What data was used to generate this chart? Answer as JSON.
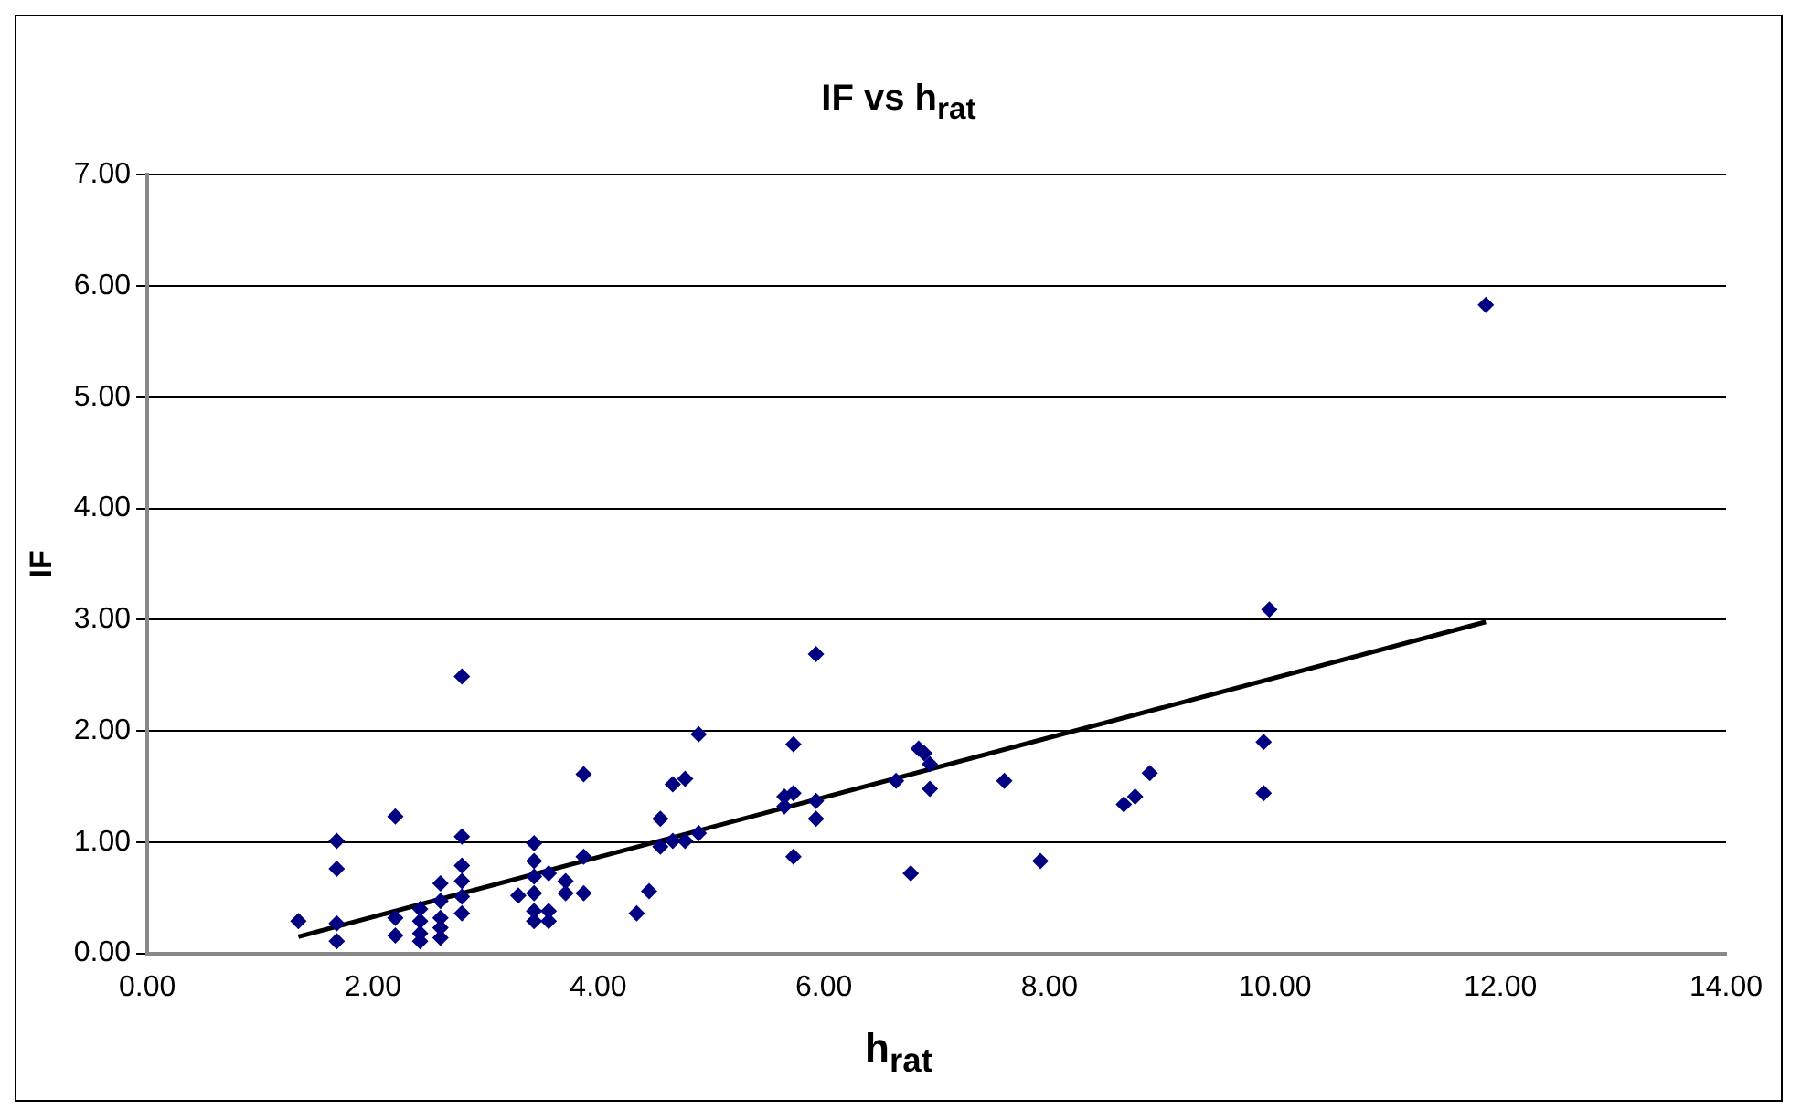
{
  "chart_data": {
    "type": "scatter",
    "title": "IF vs h$_{rat}$",
    "xlabel": "h$_{rat}$",
    "ylabel": "IF",
    "xlim": [
      0,
      14
    ],
    "xticks": [
      {
        "value": 0,
        "label": "0.00"
      },
      {
        "value": 2,
        "label": "2.00"
      },
      {
        "value": 4,
        "label": "4.00"
      },
      {
        "value": 6,
        "label": "6.00"
      },
      {
        "value": 8,
        "label": "8.00"
      },
      {
        "value": 10,
        "label": "10.00"
      },
      {
        "value": 12,
        "label": "12.00"
      },
      {
        "value": 14,
        "label": "14.00"
      }
    ],
    "ylim": [
      0,
      7
    ],
    "yticks": [
      {
        "value": 0,
        "label": "0.00"
      },
      {
        "value": 1,
        "label": "1.00"
      },
      {
        "value": 2,
        "label": "2.00"
      },
      {
        "value": 3,
        "label": "3.00"
      },
      {
        "value": 4,
        "label": "4.00"
      },
      {
        "value": 5,
        "label": "5.00"
      },
      {
        "value": 6,
        "label": "6.00"
      },
      {
        "value": 7,
        "label": "7.00"
      }
    ],
    "grid": "y",
    "legend": false,
    "marker": "diamond",
    "series": [
      {
        "type": "scatter",
        "color": "#000080",
        "x": [
          1.34,
          1.68,
          1.68,
          1.68,
          1.68,
          2.2,
          2.2,
          2.2,
          2.42,
          2.42,
          2.42,
          2.42,
          2.6,
          2.6,
          2.6,
          2.6,
          2.6,
          2.79,
          2.79,
          2.79,
          2.79,
          2.79,
          2.79,
          3.29,
          3.43,
          3.43,
          3.43,
          3.43,
          3.43,
          3.43,
          3.56,
          3.56,
          3.56,
          3.71,
          3.71,
          3.87,
          3.87,
          3.87,
          4.34,
          4.45,
          4.55,
          4.55,
          4.66,
          4.66,
          4.77,
          4.77,
          4.89,
          4.89,
          5.65,
          5.65,
          5.73,
          5.73,
          5.73,
          5.93,
          5.93,
          5.93,
          6.64,
          6.77,
          6.84,
          6.89,
          6.94,
          6.94,
          7.6,
          7.92,
          8.66,
          8.76,
          8.89,
          9.9,
          9.9,
          9.95,
          11.87
        ],
        "values": [
          0.29,
          1.01,
          0.76,
          0.27,
          0.11,
          1.23,
          0.32,
          0.16,
          0.4,
          0.29,
          0.18,
          0.11,
          0.63,
          0.47,
          0.32,
          0.23,
          0.14,
          2.49,
          1.05,
          0.79,
          0.65,
          0.51,
          0.36,
          0.52,
          0.99,
          0.83,
          0.69,
          0.54,
          0.38,
          0.29,
          0.72,
          0.38,
          0.29,
          0.65,
          0.54,
          1.61,
          0.87,
          0.54,
          0.36,
          0.56,
          1.21,
          0.96,
          1.52,
          1.01,
          1.57,
          1.01,
          1.08,
          1.97,
          1.41,
          1.32,
          1.44,
          1.88,
          0.87,
          2.69,
          1.37,
          1.21,
          1.55,
          0.72,
          1.84,
          1.8,
          1.48,
          1.7,
          1.55,
          0.83,
          1.34,
          1.41,
          1.62,
          1.9,
          1.44,
          3.09,
          5.83
        ]
      },
      {
        "type": "line",
        "color": "#000000",
        "marker": "none",
        "x": [
          1.34,
          11.87
        ],
        "values": [
          0.15,
          2.98
        ]
      }
    ]
  }
}
